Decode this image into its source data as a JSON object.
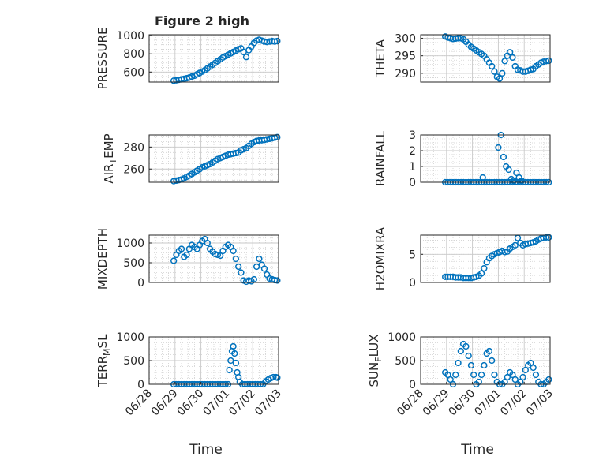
{
  "figure": {
    "title": "Figure 2 high"
  },
  "chart_data": [
    {
      "type": "scatter",
      "id": "pressure",
      "title": "Figure 2 high",
      "ylabel": "PRESSURE",
      "ylabel_sub": "",
      "xlabel": "",
      "xlim": [
        "2020-06-28",
        "2020-07-03"
      ],
      "ylim": [
        490,
        1010
      ],
      "yticks": [
        600,
        800,
        1000
      ],
      "yticklabels": [
        "600",
        "800",
        "1000"
      ],
      "xticks": [],
      "grid": true,
      "minor_grid": true,
      "marker": "circle",
      "color": "#0072bd",
      "x": [
        0.95,
        1.05,
        1.15,
        1.25,
        1.35,
        1.45,
        1.55,
        1.65,
        1.75,
        1.85,
        1.95,
        2.05,
        2.15,
        2.25,
        2.35,
        2.45,
        2.55,
        2.65,
        2.75,
        2.85,
        2.95,
        3.05,
        3.15,
        3.25,
        3.35,
        3.45,
        3.55,
        3.65,
        3.75,
        3.85,
        3.95,
        4.05,
        4.15,
        4.25,
        4.35,
        4.45,
        4.55,
        4.65,
        4.75,
        4.85,
        4.95
      ],
      "y": [
        505,
        510,
        515,
        520,
        525,
        532,
        540,
        550,
        560,
        575,
        590,
        605,
        620,
        640,
        660,
        680,
        700,
        720,
        740,
        760,
        775,
        790,
        805,
        820,
        835,
        850,
        860,
        820,
        765,
        840,
        880,
        920,
        945,
        955,
        945,
        935,
        930,
        935,
        940,
        935,
        940
      ]
    },
    {
      "type": "scatter",
      "id": "theta",
      "ylabel": "THETA",
      "ylabel_sub": "",
      "xlabel": "",
      "xlim": [
        "2020-06-28",
        "2020-07-03"
      ],
      "ylim": [
        287.5,
        301
      ],
      "yticks": [
        290,
        295,
        300
      ],
      "yticklabels": [
        "290",
        "295",
        "300"
      ],
      "xticks": [],
      "grid": true,
      "minor_grid": true,
      "marker": "circle",
      "color": "#0072bd",
      "x": [
        0.95,
        1.05,
        1.15,
        1.25,
        1.35,
        1.45,
        1.55,
        1.65,
        1.75,
        1.85,
        1.95,
        2.05,
        2.15,
        2.25,
        2.35,
        2.45,
        2.55,
        2.65,
        2.75,
        2.85,
        2.95,
        3.05,
        3.15,
        3.25,
        3.35,
        3.45,
        3.55,
        3.65,
        3.75,
        3.85,
        3.95,
        4.05,
        4.15,
        4.25,
        4.35,
        4.45,
        4.55,
        4.65,
        4.75,
        4.85,
        4.95
      ],
      "y": [
        300.5,
        300.2,
        300,
        299.8,
        299.9,
        300,
        300,
        299.7,
        299,
        298.2,
        297.5,
        297,
        296.5,
        296,
        295.5,
        295,
        294,
        293,
        292,
        290.5,
        289,
        288.5,
        290,
        293.5,
        295,
        296,
        294.5,
        292,
        291,
        290.8,
        290.5,
        290.5,
        290.7,
        291,
        291.2,
        292,
        292.5,
        293,
        293.3,
        293.5,
        293.6
      ]
    },
    {
      "type": "scatter",
      "id": "air_temp",
      "ylabel": "AIR",
      "ylabel_sub": "T",
      "ylabel_rest": "EMP",
      "xlabel": "",
      "xlim": [
        "2020-06-28",
        "2020-07-03"
      ],
      "ylim": [
        248,
        291
      ],
      "yticks": [
        260,
        280
      ],
      "yticklabels": [
        "260",
        "280"
      ],
      "xticks": [],
      "grid": true,
      "minor_grid": true,
      "marker": "circle",
      "color": "#0072bd",
      "x": [
        0.95,
        1.05,
        1.15,
        1.25,
        1.35,
        1.45,
        1.55,
        1.65,
        1.75,
        1.85,
        1.95,
        2.05,
        2.15,
        2.25,
        2.35,
        2.45,
        2.55,
        2.65,
        2.75,
        2.85,
        2.95,
        3.05,
        3.15,
        3.25,
        3.35,
        3.45,
        3.55,
        3.65,
        3.75,
        3.85,
        3.95,
        4.05,
        4.15,
        4.25,
        4.35,
        4.45,
        4.55,
        4.65,
        4.75,
        4.85,
        4.95
      ],
      "y": [
        249,
        249.5,
        250,
        250.5,
        251.5,
        253,
        254,
        255.5,
        257,
        258.5,
        260,
        261.5,
        262.5,
        263.5,
        264.5,
        266,
        267.5,
        269,
        270,
        271,
        272,
        273,
        273.5,
        274,
        274.5,
        275,
        277,
        278,
        279,
        281,
        283,
        284.5,
        285.5,
        286,
        286.2,
        286.5,
        287,
        287.5,
        288,
        288.5,
        289
      ]
    },
    {
      "type": "scatter",
      "id": "rainfall",
      "ylabel": "RAINFALL",
      "ylabel_sub": "",
      "xlabel": "",
      "xlim": [
        "2020-06-28",
        "2020-07-03"
      ],
      "ylim": [
        0,
        3
      ],
      "yticks": [
        0,
        1,
        2,
        3
      ],
      "yticklabels": [
        "0",
        "1",
        "2",
        "3"
      ],
      "xticks": [],
      "grid": true,
      "minor_grid": true,
      "marker": "circle",
      "color": "#0072bd",
      "x": [
        0.95,
        1.05,
        1.15,
        1.25,
        1.35,
        1.45,
        1.55,
        1.65,
        1.75,
        1.85,
        1.95,
        2.05,
        2.15,
        2.25,
        2.35,
        2.45,
        2.55,
        2.65,
        2.75,
        2.85,
        2.95,
        3.05,
        3.15,
        3.25,
        3.35,
        3.45,
        3.55,
        3.65,
        3.75,
        3.85,
        3.95,
        4.05,
        4.15,
        4.25,
        4.35,
        4.45,
        4.55,
        4.65,
        4.75,
        4.85,
        4.95,
        3.0,
        3.1,
        3.2,
        3.3,
        3.4,
        3.5,
        3.6,
        3.7,
        3.8,
        3.9,
        2.4
      ],
      "y": [
        0,
        0,
        0,
        0,
        0,
        0,
        0,
        0,
        0,
        0,
        0,
        0,
        0,
        0,
        0,
        0,
        0,
        0,
        0,
        0,
        0,
        0,
        0,
        0,
        0,
        0,
        0,
        0,
        0,
        0,
        0,
        0,
        0,
        0,
        0,
        0,
        0,
        0,
        0,
        0,
        0,
        2.2,
        3.0,
        1.6,
        1.0,
        0.8,
        0.2,
        0.1,
        0.6,
        0.3,
        0.1,
        0.3
      ]
    },
    {
      "type": "scatter",
      "id": "mixdepth",
      "ylabel": "MIXDEPTH",
      "ylabel_sub": "",
      "xlabel": "",
      "xlim": [
        "2020-06-28",
        "2020-07-03"
      ],
      "ylim": [
        0,
        1200
      ],
      "yticks": [
        0,
        500,
        1000
      ],
      "yticklabels": [
        "0",
        "500",
        "1000"
      ],
      "xticks": [],
      "grid": true,
      "minor_grid": true,
      "marker": "circle",
      "color": "#0072bd",
      "x": [
        0.95,
        1.05,
        1.15,
        1.25,
        1.35,
        1.45,
        1.55,
        1.65,
        1.75,
        1.85,
        1.95,
        2.05,
        2.15,
        2.25,
        2.35,
        2.45,
        2.55,
        2.65,
        2.75,
        2.85,
        2.95,
        3.05,
        3.15,
        3.25,
        3.35,
        3.45,
        3.55,
        3.65,
        3.75,
        3.85,
        3.95,
        4.05,
        4.15,
        4.25,
        4.35,
        4.45,
        4.55,
        4.65,
        4.75,
        4.85,
        4.95
      ],
      "y": [
        550,
        700,
        800,
        850,
        650,
        700,
        850,
        950,
        900,
        850,
        950,
        1050,
        1100,
        1000,
        850,
        780,
        720,
        700,
        680,
        800,
        900,
        950,
        900,
        800,
        600,
        400,
        250,
        50,
        20,
        50,
        30,
        80,
        400,
        600,
        450,
        350,
        200,
        100,
        80,
        60,
        50
      ]
    },
    {
      "type": "scatter",
      "id": "h2omixra",
      "ylabel": "H2OMIXRA",
      "ylabel_sub": "",
      "xlabel": "",
      "xlim": [
        "2020-06-28",
        "2020-07-03"
      ],
      "ylim": [
        0,
        8.4
      ],
      "yticks": [
        0,
        5
      ],
      "yticklabels": [
        "0",
        "5"
      ],
      "xticks": [],
      "grid": true,
      "minor_grid": true,
      "marker": "circle",
      "color": "#0072bd",
      "x": [
        0.95,
        1.05,
        1.15,
        1.25,
        1.35,
        1.45,
        1.55,
        1.65,
        1.75,
        1.85,
        1.95,
        2.05,
        2.15,
        2.25,
        2.35,
        2.45,
        2.55,
        2.65,
        2.75,
        2.85,
        2.95,
        3.05,
        3.15,
        3.25,
        3.35,
        3.45,
        3.55,
        3.65,
        3.75,
        3.85,
        3.95,
        4.05,
        4.15,
        4.25,
        4.35,
        4.45,
        4.55,
        4.65,
        4.75,
        4.85,
        4.95
      ],
      "y": [
        1,
        1,
        1,
        1,
        0.9,
        0.9,
        0.9,
        0.8,
        0.8,
        0.8,
        0.8,
        0.9,
        1,
        1.2,
        1.6,
        2.5,
        3.6,
        4.3,
        4.7,
        5,
        5.2,
        5.4,
        5.6,
        5.4,
        5.5,
        6,
        6.3,
        6.6,
        7.9,
        7,
        6.6,
        6.8,
        6.9,
        7,
        7.1,
        7.3,
        7.6,
        7.8,
        7.9,
        8,
        8
      ]
    },
    {
      "type": "scatter",
      "id": "terr_msl",
      "ylabel": "TERR",
      "ylabel_sub": "M",
      "ylabel_rest": "SL",
      "xlabel": "Time",
      "xlim": [
        "2020-06-28",
        "2020-07-03"
      ],
      "ylim": [
        0,
        1000
      ],
      "yticks": [
        0,
        500,
        1000
      ],
      "yticklabels": [
        "0",
        "500",
        "1000"
      ],
      "xticks": [
        0,
        1,
        2,
        3,
        4,
        5
      ],
      "xticklabels": [
        "06/28",
        "06/29",
        "06/30",
        "07/01",
        "07/02",
        "07/03"
      ],
      "grid": true,
      "minor_grid": true,
      "marker": "circle",
      "color": "#0072bd",
      "x": [
        0.95,
        1.05,
        1.15,
        1.25,
        1.35,
        1.45,
        1.55,
        1.65,
        1.75,
        1.85,
        1.95,
        2.05,
        2.15,
        2.25,
        2.35,
        2.45,
        2.55,
        2.65,
        2.75,
        2.85,
        2.95,
        3.05,
        3.1,
        3.15,
        3.2,
        3.25,
        3.3,
        3.35,
        3.4,
        3.45,
        3.5,
        3.6,
        3.7,
        3.8,
        3.9,
        4.0,
        4.1,
        4.2,
        4.3,
        4.4,
        4.5,
        4.6,
        4.7,
        4.8,
        4.9,
        4.95
      ],
      "y": [
        0,
        0,
        0,
        0,
        0,
        0,
        0,
        0,
        0,
        0,
        0,
        0,
        0,
        0,
        0,
        0,
        0,
        0,
        0,
        0,
        0,
        0,
        300,
        500,
        700,
        800,
        650,
        450,
        250,
        150,
        50,
        0,
        0,
        0,
        0,
        0,
        0,
        0,
        0,
        0,
        60,
        100,
        130,
        150,
        150,
        140
      ]
    },
    {
      "type": "scatter",
      "id": "sun_flux",
      "ylabel": "SUN",
      "ylabel_sub": "F",
      "ylabel_rest": "LUX",
      "xlabel": "Time",
      "xlim": [
        "2020-06-28",
        "2020-07-03"
      ],
      "ylim": [
        0,
        1000
      ],
      "yticks": [
        0,
        500,
        1000
      ],
      "yticklabels": [
        "0",
        "500",
        "1000"
      ],
      "xticks": [
        0,
        1,
        2,
        3,
        4,
        5
      ],
      "xticklabels": [
        "06/28",
        "06/29",
        "06/30",
        "07/01",
        "07/02",
        "07/03"
      ],
      "grid": true,
      "minor_grid": true,
      "marker": "circle",
      "color": "#0072bd",
      "x": [
        0.95,
        1.05,
        1.15,
        1.25,
        1.35,
        1.45,
        1.55,
        1.65,
        1.75,
        1.85,
        1.95,
        2.05,
        2.15,
        2.25,
        2.35,
        2.45,
        2.55,
        2.65,
        2.75,
        2.85,
        2.95,
        3.05,
        3.15,
        3.25,
        3.35,
        3.45,
        3.55,
        3.65,
        3.75,
        3.85,
        3.95,
        4.05,
        4.15,
        4.25,
        4.35,
        4.45,
        4.55,
        4.65,
        4.75,
        4.85,
        4.95
      ],
      "y": [
        250,
        200,
        100,
        0,
        200,
        450,
        700,
        850,
        800,
        600,
        400,
        200,
        0,
        50,
        200,
        400,
        650,
        700,
        500,
        200,
        50,
        0,
        0,
        50,
        150,
        250,
        200,
        100,
        0,
        50,
        150,
        300,
        400,
        450,
        350,
        200,
        50,
        0,
        0,
        50,
        100
      ]
    }
  ]
}
